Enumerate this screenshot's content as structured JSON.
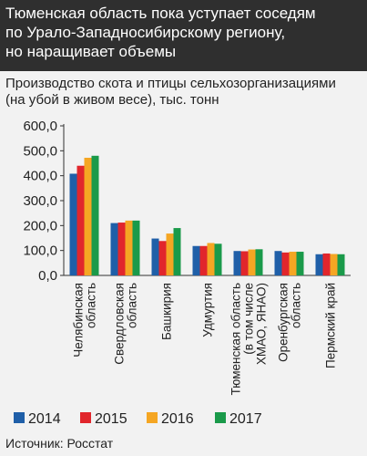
{
  "header": {
    "title_lines": [
      "Тюменская область пока уступает соседям",
      "по Урало-Западносибирскому региону,",
      "но наращивает объемы"
    ]
  },
  "subtitle_lines": [
    "Производство скота и птицы сельхозорганизациями",
    "(на убой в живом весе), тыс. тонн"
  ],
  "source": "Источник: Росстат",
  "colors": {
    "2014": "#1f5fa8",
    "2015": "#e1262c",
    "2016": "#f5a623",
    "2017": "#1a9a4a",
    "header_bg": "#2f2f2f",
    "page_bg": "#f2f2f2"
  },
  "chart_data": {
    "type": "bar",
    "categories": [
      [
        "Челябинская",
        "область"
      ],
      [
        "Свердловская",
        "область"
      ],
      [
        "Башкирия"
      ],
      [
        "Удмуртия"
      ],
      [
        "Тюменская область",
        "(в том числе",
        "ХМАО, ЯНАО)"
      ],
      [
        "Оренбургская",
        "область"
      ],
      [
        "Пермский край"
      ]
    ],
    "series": [
      {
        "name": "2014",
        "values": [
          408,
          210,
          148,
          118,
          98,
          98,
          85
        ]
      },
      {
        "name": "2015",
        "values": [
          440,
          212,
          138,
          118,
          97,
          92,
          88
        ]
      },
      {
        "name": "2016",
        "values": [
          472,
          220,
          168,
          130,
          104,
          95,
          86
        ]
      },
      {
        "name": "2017",
        "values": [
          480,
          220,
          190,
          127,
          105,
          95,
          85
        ]
      }
    ],
    "y_ticks": [
      "600,0",
      "500,0",
      "400,0",
      "300,0",
      "200,0",
      "100,0",
      "0,0"
    ],
    "ylim": [
      0,
      600
    ],
    "grid": false,
    "legend_position": "bottom"
  }
}
